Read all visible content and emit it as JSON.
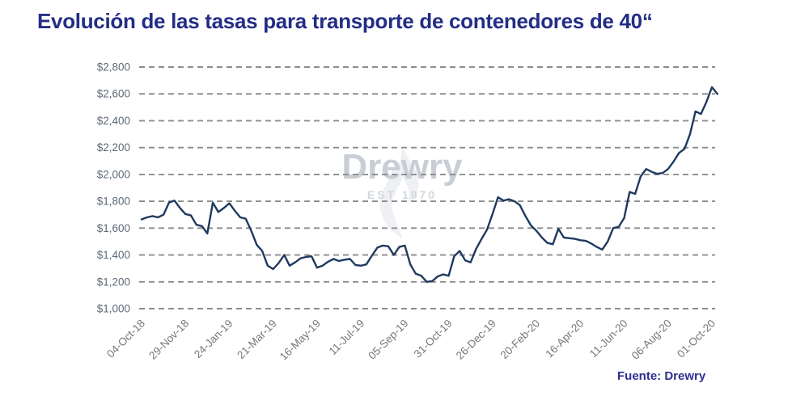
{
  "title": "Evolución de las tasas para transporte de contenedores de 40“",
  "source": "Fuente: Drewry",
  "watermark": {
    "brand": "Drewry",
    "est": "EST 1970"
  },
  "colors": {
    "title": "#232d86",
    "line": "#1f3a5f",
    "grid": "#8c8c8c",
    "y_axis_text": "#5e6a77",
    "x_axis_text": "#75787d",
    "source_text": "#2b2f90",
    "watermark_text": "#c9ced6"
  },
  "chart_data": {
    "type": "line",
    "title": "Evolución de las tasas para transporte de contenedores de 40“",
    "xlabel": "",
    "ylabel": "",
    "ylim": [
      1000,
      2800
    ],
    "y_ticks": [
      2800,
      2600,
      2400,
      2200,
      2000,
      1800,
      1600,
      1400,
      1200,
      1000
    ],
    "y_tick_prefix": "$",
    "grid": "horizontal-dashed",
    "legend": "none",
    "x_tick_labels": [
      "04-Oct-18",
      "29-Nov-18",
      "24-Jan-19",
      "21-Mar-19",
      "16-May-19",
      "11-Jul-19",
      "05-Sep-19",
      "31-Oct-19",
      "26-Dec-19",
      "20-Feb-20",
      "16-Apr-20",
      "11-Jun-20",
      "06-Aug-20",
      "01-Oct-20"
    ],
    "points_per_tick": 8,
    "x_is_weekly_series": true,
    "values": [
      1665,
      1680,
      1690,
      1680,
      1700,
      1790,
      1805,
      1750,
      1705,
      1695,
      1625,
      1615,
      1560,
      1790,
      1720,
      1750,
      1785,
      1730,
      1680,
      1670,
      1580,
      1475,
      1430,
      1320,
      1295,
      1340,
      1400,
      1320,
      1345,
      1375,
      1385,
      1390,
      1305,
      1320,
      1350,
      1370,
      1355,
      1365,
      1370,
      1325,
      1320,
      1330,
      1395,
      1455,
      1470,
      1465,
      1400,
      1460,
      1470,
      1330,
      1260,
      1245,
      1200,
      1205,
      1240,
      1255,
      1245,
      1390,
      1430,
      1360,
      1345,
      1445,
      1520,
      1590,
      1705,
      1830,
      1805,
      1815,
      1800,
      1770,
      1690,
      1620,
      1580,
      1530,
      1490,
      1480,
      1595,
      1530,
      1525,
      1520,
      1510,
      1505,
      1485,
      1460,
      1440,
      1500,
      1600,
      1610,
      1675,
      1870,
      1855,
      1985,
      2040,
      2020,
      2005,
      2010,
      2040,
      2095,
      2160,
      2190,
      2300,
      2470,
      2450,
      2540,
      2650,
      2600
    ]
  }
}
